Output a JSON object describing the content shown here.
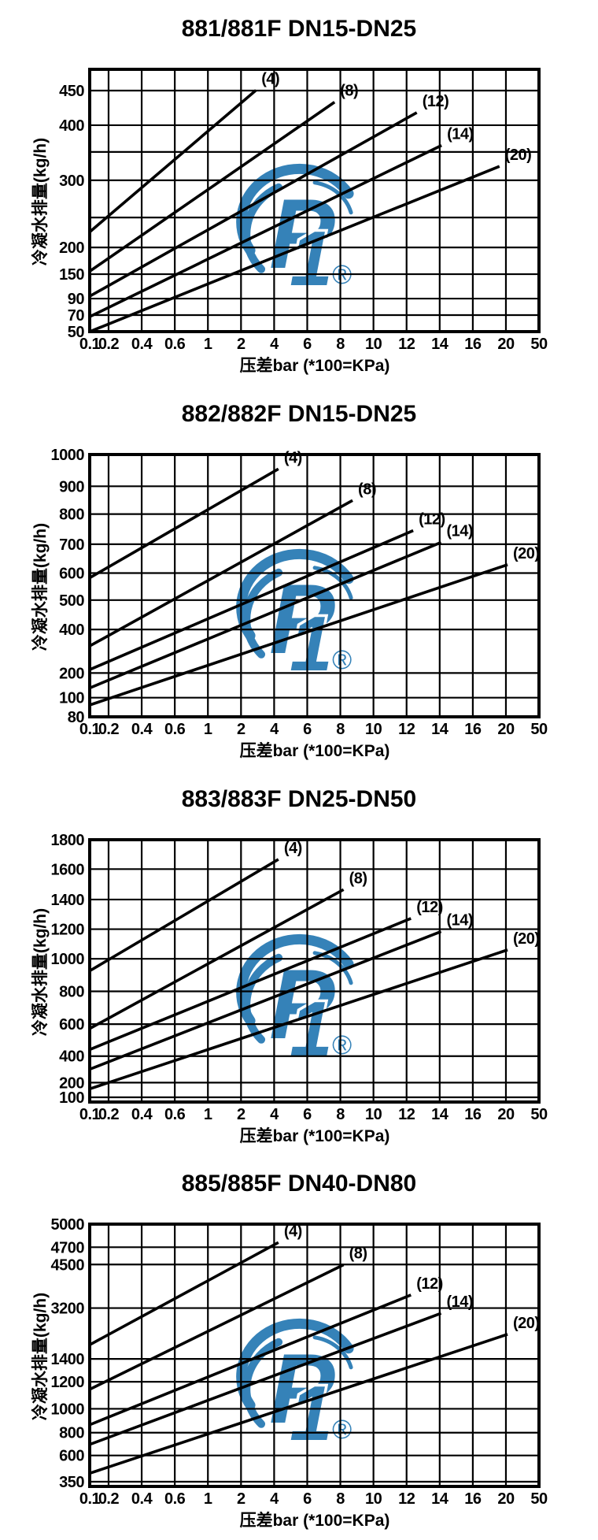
{
  "colors": {
    "ink": "#000000",
    "background": "#ffffff",
    "logo_blue": "#2b7cb5"
  },
  "axis": {
    "x_title": "压差bar (*100=KPa)",
    "y_title": "冷凝水排量(kg/h)",
    "x_ticks": [
      {
        "label": "0.1",
        "f": 0.0
      },
      {
        "label": "0.2",
        "f": 0.042
      },
      {
        "label": "0.4",
        "f": 0.1157
      },
      {
        "label": "0.6",
        "f": 0.1894
      },
      {
        "label": "1",
        "f": 0.2631
      },
      {
        "label": "2",
        "f": 0.3368
      },
      {
        "label": "4",
        "f": 0.4105
      },
      {
        "label": "6",
        "f": 0.4842
      },
      {
        "label": "8",
        "f": 0.5579
      },
      {
        "label": "10",
        "f": 0.6316
      },
      {
        "label": "12",
        "f": 0.7053
      },
      {
        "label": "14",
        "f": 0.779
      },
      {
        "label": "16",
        "f": 0.8527
      },
      {
        "label": "20",
        "f": 0.9264
      },
      {
        "label": "50",
        "f": 1.0
      }
    ]
  },
  "watermark": {
    "letter": "P",
    "one": "1",
    "registered": "®",
    "cx_f": 0.48,
    "cy_f": 0.6
  },
  "charts": [
    {
      "title": "881/881F DN15-DN25",
      "y_ticks": [
        {
          "label": "450",
          "f": 0.081
        },
        {
          "label": "400",
          "f": 0.213
        },
        {
          "label": "",
          "f": 0.315
        },
        {
          "label": "300",
          "f": 0.423
        },
        {
          "label": "",
          "f": 0.565
        },
        {
          "label": "200",
          "f": 0.679
        },
        {
          "label": "150",
          "f": 0.781
        },
        {
          "label": "90",
          "f": 0.874
        },
        {
          "label": "70",
          "f": 0.937
        },
        {
          "label": "50",
          "f": 1.0
        }
      ],
      "curves": [
        {
          "label": "(4)",
          "x1": 0,
          "y1": 0.62,
          "x2": 0.37,
          "y2": 0.08
        },
        {
          "label": "(8)",
          "x1": 0,
          "y1": 0.77,
          "x2": 0.545,
          "y2": 0.125
        },
        {
          "label": "(12)",
          "x1": 0,
          "y1": 0.865,
          "x2": 0.728,
          "y2": 0.165
        },
        {
          "label": "(14)",
          "x1": 0,
          "y1": 0.943,
          "x2": 0.783,
          "y2": 0.29
        },
        {
          "label": "(20)",
          "x1": 0,
          "y1": 1.0,
          "x2": 0.912,
          "y2": 0.37
        }
      ]
    },
    {
      "title": "882/882F DN15-DN25",
      "y_ticks": [
        {
          "label": "1000",
          "f": 0.0
        },
        {
          "label": "900",
          "f": 0.121
        },
        {
          "label": "800",
          "f": 0.227
        },
        {
          "label": "700",
          "f": 0.342
        },
        {
          "label": "600",
          "f": 0.452
        },
        {
          "label": "500",
          "f": 0.555
        },
        {
          "label": "400",
          "f": 0.667
        },
        {
          "label": "200",
          "f": 0.833
        },
        {
          "label": "100",
          "f": 0.927
        },
        {
          "label": "80",
          "f": 1.0
        }
      ],
      "curves": [
        {
          "label": "(4)",
          "x1": 0,
          "y1": 0.47,
          "x2": 0.42,
          "y2": 0.055
        },
        {
          "label": "(8)",
          "x1": 0,
          "y1": 0.73,
          "x2": 0.585,
          "y2": 0.175
        },
        {
          "label": "(12)",
          "x1": 0,
          "y1": 0.82,
          "x2": 0.72,
          "y2": 0.29
        },
        {
          "label": "(14)",
          "x1": 0,
          "y1": 0.89,
          "x2": 0.782,
          "y2": 0.335
        },
        {
          "label": "(20)",
          "x1": 0,
          "y1": 0.955,
          "x2": 0.93,
          "y2": 0.42
        }
      ]
    },
    {
      "title": "883/883F DN25-DN50",
      "y_ticks": [
        {
          "label": "1800",
          "f": 0.0
        },
        {
          "label": "1600",
          "f": 0.112
        },
        {
          "label": "1400",
          "f": 0.228
        },
        {
          "label": "1200",
          "f": 0.341
        },
        {
          "label": "1000",
          "f": 0.454
        },
        {
          "label": "800",
          "f": 0.578
        },
        {
          "label": "600",
          "f": 0.703
        },
        {
          "label": "400",
          "f": 0.825
        },
        {
          "label": "200",
          "f": 0.926
        },
        {
          "label": "100",
          "f": 0.982
        }
      ],
      "curves": [
        {
          "label": "(4)",
          "x1": 0,
          "y1": 0.5,
          "x2": 0.42,
          "y2": 0.075
        },
        {
          "label": "(8)",
          "x1": 0,
          "y1": 0.72,
          "x2": 0.565,
          "y2": 0.19
        },
        {
          "label": "(12)",
          "x1": 0,
          "y1": 0.8,
          "x2": 0.715,
          "y2": 0.3
        },
        {
          "label": "(14)",
          "x1": 0,
          "y1": 0.875,
          "x2": 0.782,
          "y2": 0.35
        },
        {
          "label": "(20)",
          "x1": 0,
          "y1": 0.95,
          "x2": 0.93,
          "y2": 0.42
        }
      ]
    },
    {
      "title": "885/885F DN40-DN80",
      "y_ticks": [
        {
          "label": "5000",
          "f": 0.0
        },
        {
          "label": "4700",
          "f": 0.088
        },
        {
          "label": "4500",
          "f": 0.154
        },
        {
          "label": "3200",
          "f": 0.32
        },
        {
          "label": "1400",
          "f": 0.514
        },
        {
          "label": "1200",
          "f": 0.601
        },
        {
          "label": "1000",
          "f": 0.704
        },
        {
          "label": "800",
          "f": 0.795
        },
        {
          "label": "600",
          "f": 0.882
        },
        {
          "label": "350",
          "f": 0.982
        }
      ],
      "curves": [
        {
          "label": "(4)",
          "x1": 0,
          "y1": 0.46,
          "x2": 0.42,
          "y2": 0.07
        },
        {
          "label": "(8)",
          "x1": 0,
          "y1": 0.63,
          "x2": 0.565,
          "y2": 0.155
        },
        {
          "label": "(12)",
          "x1": 0,
          "y1": 0.765,
          "x2": 0.715,
          "y2": 0.27
        },
        {
          "label": "(14)",
          "x1": 0,
          "y1": 0.84,
          "x2": 0.782,
          "y2": 0.34
        },
        {
          "label": "(20)",
          "x1": 0,
          "y1": 0.95,
          "x2": 0.93,
          "y2": 0.42
        }
      ]
    }
  ],
  "chart_data": [
    {
      "type": "line",
      "title": "881/881F DN15-DN25",
      "xlabel": "压差bar (*100=KPa)",
      "ylabel": "冷凝水排量(kg/h)",
      "x_ticks": [
        0.1,
        0.2,
        0.4,
        0.6,
        1,
        2,
        4,
        6,
        8,
        10,
        12,
        14,
        16,
        20,
        50
      ],
      "y_ticks": [
        50,
        70,
        90,
        150,
        200,
        300,
        400,
        450
      ],
      "x_scale": "log-like",
      "y_scale": "log-like",
      "ylim": [
        50,
        480
      ],
      "legend_position": "labels-at-line-ends",
      "grid": true,
      "series": [
        {
          "name": "(4)",
          "points": [
            [
              0.1,
              225
            ],
            [
              3,
              450
            ]
          ]
        },
        {
          "name": "(8)",
          "points": [
            [
              0.1,
              160
            ],
            [
              7.5,
              435
            ]
          ]
        },
        {
          "name": "(12)",
          "points": [
            [
              0.1,
              95
            ],
            [
              12,
              425
            ]
          ]
        },
        {
          "name": "(14)",
          "points": [
            [
              0.1,
              75
            ],
            [
              14,
              365
            ]
          ]
        },
        {
          "name": "(20)",
          "points": [
            [
              0.1,
              50
            ],
            [
              20,
              330
            ]
          ]
        }
      ]
    },
    {
      "type": "line",
      "title": "882/882F DN15-DN25",
      "xlabel": "压差bar (*100=KPa)",
      "ylabel": "冷凝水排量(kg/h)",
      "x_ticks": [
        0.1,
        0.2,
        0.4,
        0.6,
        1,
        2,
        4,
        6,
        8,
        10,
        12,
        14,
        16,
        20,
        50
      ],
      "y_ticks": [
        80,
        100,
        200,
        400,
        500,
        600,
        700,
        800,
        900,
        1000
      ],
      "x_scale": "log-like",
      "y_scale": "log-like",
      "ylim": [
        80,
        1000
      ],
      "legend_position": "labels-at-line-ends",
      "grid": true,
      "series": [
        {
          "name": "(4)",
          "points": [
            [
              0.1,
              585
            ],
            [
              4,
              970
            ]
          ]
        },
        {
          "name": "(8)",
          "points": [
            [
              0.1,
              330
            ],
            [
              8,
              860
            ]
          ]
        },
        {
          "name": "(12)",
          "points": [
            [
              0.1,
              215
            ],
            [
              12,
              745
            ]
          ]
        },
        {
          "name": "(14)",
          "points": [
            [
              0.1,
              150
            ],
            [
              14,
              705
            ]
          ]
        },
        {
          "name": "(20)",
          "points": [
            [
              0.1,
              95
            ],
            [
              20,
              610
            ]
          ]
        }
      ]
    },
    {
      "type": "line",
      "title": "883/883F DN25-DN50",
      "xlabel": "压差bar (*100=KPa)",
      "ylabel": "冷凝水排量(kg/h)",
      "x_ticks": [
        0.1,
        0.2,
        0.4,
        0.6,
        1,
        2,
        4,
        6,
        8,
        10,
        12,
        14,
        16,
        20,
        50
      ],
      "y_ticks": [
        100,
        200,
        400,
        600,
        800,
        1000,
        1200,
        1400,
        1600,
        1800
      ],
      "x_scale": "log-like",
      "y_scale": "log-like",
      "ylim": [
        100,
        1800
      ],
      "legend_position": "labels-at-line-ends",
      "grid": true,
      "series": [
        {
          "name": "(4)",
          "points": [
            [
              0.1,
              920
            ],
            [
              4,
              1680
            ]
          ]
        },
        {
          "name": "(8)",
          "points": [
            [
              0.1,
              570
            ],
            [
              8,
              1470
            ]
          ]
        },
        {
          "name": "(12)",
          "points": [
            [
              0.1,
              440
            ],
            [
              12,
              1270
            ]
          ]
        },
        {
          "name": "(14)",
          "points": [
            [
              0.1,
              300
            ],
            [
              14,
              1185
            ]
          ]
        },
        {
          "name": "(20)",
          "points": [
            [
              0.1,
              190
            ],
            [
              20,
              1060
            ]
          ]
        }
      ]
    },
    {
      "type": "line",
      "title": "885/885F DN40-DN80",
      "xlabel": "压差bar (*100=KPa)",
      "ylabel": "冷凝水排量(kg/h)",
      "x_ticks": [
        0.1,
        0.2,
        0.4,
        0.6,
        1,
        2,
        4,
        6,
        8,
        10,
        12,
        14,
        16,
        20,
        50
      ],
      "y_ticks": [
        350,
        600,
        800,
        1000,
        1200,
        1400,
        3200,
        4500,
        4700,
        5000
      ],
      "x_scale": "log-like",
      "y_scale": "log-like",
      "ylim": [
        350,
        5000
      ],
      "legend_position": "labels-at-line-ends",
      "grid": true,
      "series": [
        {
          "name": "(4)",
          "points": [
            [
              0.1,
              1900
            ],
            [
              4,
              4760
            ]
          ]
        },
        {
          "name": "(8)",
          "points": [
            [
              0.1,
              1140
            ],
            [
              8,
              4500
            ]
          ]
        },
        {
          "name": "(12)",
          "points": [
            [
              0.1,
              870
            ],
            [
              12,
              3550
            ]
          ]
        },
        {
          "name": "(14)",
          "points": [
            [
              0.1,
              700
            ],
            [
              14,
              3100
            ]
          ]
        },
        {
          "name": "(20)",
          "points": [
            [
              0.1,
              430
            ],
            [
              20,
              2250
            ]
          ]
        }
      ]
    }
  ]
}
